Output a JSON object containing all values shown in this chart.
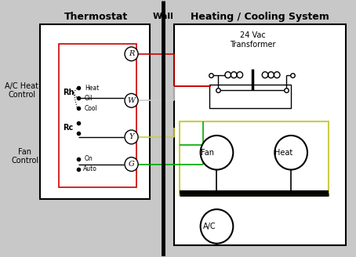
{
  "bg_color": "#c8c8c8",
  "white_bg": "#ffffff",
  "title_thermostat": "Thermostat",
  "title_wall": "Wall",
  "title_hcs": "Heating / Cooling System",
  "label_ac_heat": "A/C Heat\nControl",
  "label_fan": "Fan\nControl",
  "label_rh": "Rh",
  "label_rc": "Rc",
  "label_heat_sw": "Heat",
  "label_oil_sw": "Oil",
  "label_cool_sw": "Cool",
  "label_on": "On",
  "label_auto": "Auto",
  "label_R": "R",
  "label_W": "W",
  "label_Y": "Y",
  "label_G": "G",
  "label_transformer": "24 Vac\nTransformer",
  "label_fan_comp": "Fan",
  "label_heat_comp": "Heat",
  "label_ac_comp": "A/C",
  "wire_red": "#cc0000",
  "wire_green": "#00aa00",
  "wire_yellow": "#cccc44",
  "wire_white": "#cccccc"
}
